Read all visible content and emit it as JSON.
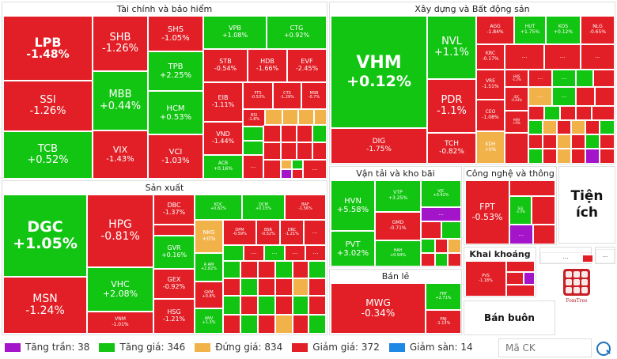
{
  "sectors": {
    "finance": "Tài chính và bảo hiểm",
    "construction": "Xây dựng và Bất động sản",
    "manufacturing": "Sản xuất",
    "transport": "Vận tải và kho bãi",
    "tech": "Công nghệ và thông tin",
    "utilities": "Tiện ích",
    "mining": "Khai khoáng",
    "retail": "Bán lẻ",
    "wholesale": "Bán buôn"
  },
  "more_label": "...",
  "tiles": {
    "LPB": {
      "sym": "LPB",
      "pct": "-1.48%"
    },
    "SSI": {
      "sym": "SSI",
      "pct": "-1.26%"
    },
    "TCB": {
      "sym": "TCB",
      "pct": "+0.52%"
    },
    "SHB": {
      "sym": "SHB",
      "pct": "-1.26%"
    },
    "MBB": {
      "sym": "MBB",
      "pct": "+0.44%"
    },
    "VIX": {
      "sym": "VIX",
      "pct": "-1.43%"
    },
    "SHS": {
      "sym": "SHS",
      "pct": "-1.05%"
    },
    "TPB": {
      "sym": "TPB",
      "pct": "+2.25%"
    },
    "HCM": {
      "sym": "HCM",
      "pct": "+0.53%"
    },
    "VCI": {
      "sym": "VCI",
      "pct": "-1.03%"
    },
    "VPB": {
      "sym": "VPB",
      "pct": "+1.08%"
    },
    "CTG": {
      "sym": "CTG",
      "pct": "+0.92%"
    },
    "STB": {
      "sym": "STB",
      "pct": "-0.54%"
    },
    "HDB": {
      "sym": "HDB",
      "pct": "-1.66%"
    },
    "EVF": {
      "sym": "EVF",
      "pct": "-2.45%"
    },
    "EIB": {
      "sym": "EIB",
      "pct": "-1.11%"
    },
    "FTS": {
      "sym": "FTS",
      "pct": "-0.53%"
    },
    "CTS": {
      "sym": "CTS",
      "pct": "-1.29%"
    },
    "MSB": {
      "sym": "MSB",
      "pct": "-0.7%"
    },
    "BSI": {
      "sym": "BSI",
      "pct": "-1.8%"
    },
    "VND": {
      "sym": "VND",
      "pct": "-1.44%"
    },
    "ACB": {
      "sym": "ACB",
      "pct": "+0.16%"
    },
    "VHM": {
      "sym": "VHM",
      "pct": "+0.12%"
    },
    "DIG": {
      "sym": "DIG",
      "pct": "-1.75%"
    },
    "NVL": {
      "sym": "NVL",
      "pct": "+1.1%"
    },
    "PDR": {
      "sym": "PDR",
      "pct": "-1.1%"
    },
    "TCH": {
      "sym": "TCH",
      "pct": "-0.82%"
    },
    "AGG": {
      "sym": "AGG",
      "pct": "-1.84%"
    },
    "HUT": {
      "sym": "HUT",
      "pct": "+1.75%"
    },
    "KOS": {
      "sym": "KOS",
      "pct": "+0.12%"
    },
    "NLG": {
      "sym": "NLG",
      "pct": "-0.65%"
    },
    "KBC": {
      "sym": "KBC",
      "pct": "-0.17%"
    },
    "VRE": {
      "sym": "VRE",
      "pct": "-1.51%"
    },
    "CEO": {
      "sym": "CEO",
      "pct": "-1.08%"
    },
    "KDH": {
      "sym": "KDH",
      "pct": "+0%"
    },
    "IDC": {
      "sym": "IDC",
      "pct": "-0.44%"
    },
    "HHV": {
      "sym": "HHV",
      "pct": "+0%"
    },
    "HHS": {
      "sym": "HHS",
      "pct": "-1.2%"
    },
    "DGC": {
      "sym": "DGC",
      "pct": "+1.05%"
    },
    "MSN": {
      "sym": "MSN",
      "pct": "-1.24%"
    },
    "HPG": {
      "sym": "HPG",
      "pct": "-0.81%"
    },
    "VHC": {
      "sym": "VHC",
      "pct": "+2.08%"
    },
    "VNM": {
      "sym": "VNM",
      "pct": "-1.01%"
    },
    "DBC": {
      "sym": "DBC",
      "pct": "-1.37%"
    },
    "GVR": {
      "sym": "GVR",
      "pct": "+0.16%"
    },
    "GEX": {
      "sym": "GEX",
      "pct": "-0.92%"
    },
    "HSG": {
      "sym": "HSG",
      "pct": "-1.21%"
    },
    "KDC": {
      "sym": "KDC",
      "pct": "+0.82%"
    },
    "DCM": {
      "sym": "DCM",
      "pct": "+0.15%"
    },
    "BAF": {
      "sym": "BAF",
      "pct": "-1.56%"
    },
    "NKG": {
      "sym": "NKG",
      "pct": "+0%"
    },
    "DPM": {
      "sym": "DPM",
      "pct": "-0.59%"
    },
    "BSR": {
      "sym": "BSR",
      "pct": "-0.52%"
    },
    "DRC": {
      "sym": "DRC",
      "pct": "-1.21%"
    },
    "ANV": {
      "sym": "ANV",
      "pct": "+1.3%"
    },
    "AAM": {
      "sym": "A AM",
      "pct": "+2.82%"
    },
    "GKM": {
      "sym": "GKM",
      "pct": "+0.8%"
    },
    "HVN": {
      "sym": "HVN",
      "pct": "+5.58%"
    },
    "PVT": {
      "sym": "PVT",
      "pct": "+3.02%"
    },
    "VTP": {
      "sym": "VTP",
      "pct": "+3.25%"
    },
    "GMD": {
      "sym": "GMD",
      "pct": "-0.71%"
    },
    "HAH": {
      "sym": "HAH",
      "pct": "+0.94%"
    },
    "VJC": {
      "sym": "VJC",
      "pct": "+0.42%"
    },
    "FPT": {
      "sym": "FPT",
      "pct": "-0.53%"
    },
    "SGI": {
      "sym": "SGI",
      "pct": "-2.4%"
    },
    "PVS": {
      "sym": "PVS",
      "pct": "-1.18%"
    },
    "MWG": {
      "sym": "MWG",
      "pct": "-0.34%"
    },
    "FRT": {
      "sym": "FRT",
      "pct": "+2.71%"
    },
    "PNJ": {
      "sym": "PNJ",
      "pct": "-1.13%"
    }
  },
  "legend": [
    {
      "label": "Tăng trần: 38",
      "color": "#a414c9"
    },
    {
      "label": "Tăng giá: 346",
      "color": "#13c513"
    },
    {
      "label": "Đứng giá: 834",
      "color": "#f2b24a"
    },
    {
      "label": "Giảm giá: 372",
      "color": "#e21f26"
    },
    {
      "label": "Giảm sàn: 14",
      "color": "#1e88e5"
    }
  ],
  "search": {
    "placeholder": "Mã CK"
  },
  "logo": {
    "text": "FomTree"
  }
}
